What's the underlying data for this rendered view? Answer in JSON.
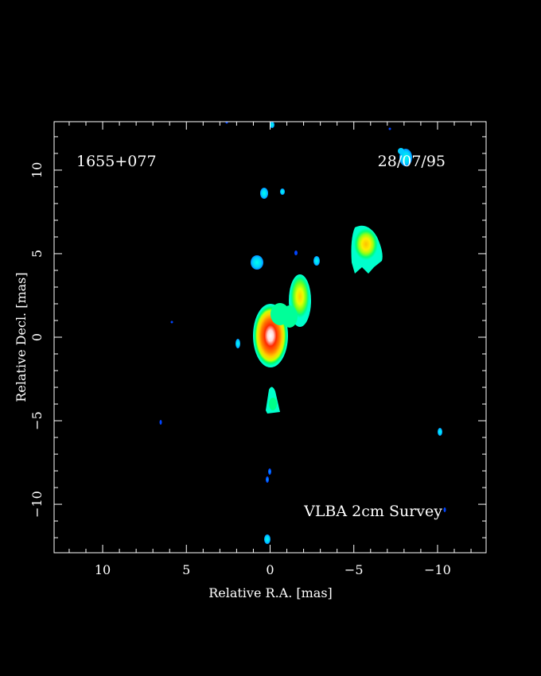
{
  "image": {
    "source_label": "1655+077",
    "date_label": "28/07/95",
    "survey_label": "VLBA 2cm Survey",
    "xlabel": "Relative R.A. [mas]",
    "ylabel": "Relative Decl. [mas]",
    "xlim": [
      12.9,
      -12.9
    ],
    "ylim": [
      -12.9,
      12.9
    ],
    "x_ticks": [
      "10",
      "5",
      "0",
      "−5",
      "−10"
    ],
    "y_ticks": [
      "10",
      "5",
      "0",
      "−5",
      "−10"
    ],
    "x_tick_values": [
      10,
      5,
      0,
      -5,
      -10
    ],
    "y_tick_values": [
      10,
      5,
      0,
      -5,
      -10
    ],
    "background": "#000000",
    "colormap": [
      "#0000ff",
      "#00aaff",
      "#00ffcc",
      "#00ff44",
      "#ccff00",
      "#ffd000",
      "#ff6a00",
      "#ff0000",
      "#ffffff"
    ]
  }
}
